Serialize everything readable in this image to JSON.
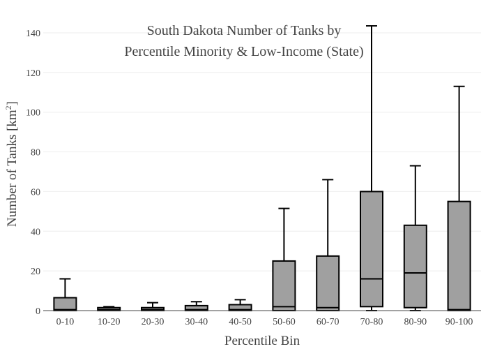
{
  "chart_data": {
    "type": "box",
    "title_line1": "South Dakota Number of Tanks by",
    "title_line2": "Percentile Minority & Low-Income (State)",
    "xlabel": "Percentile Bin",
    "ylabel_main": "Number of Tanks  [km",
    "ylabel_sup": "2",
    "ylabel_end": "]",
    "ylim": [
      0,
      145
    ],
    "yticks": [
      0,
      20,
      40,
      60,
      80,
      100,
      120,
      140
    ],
    "grid": true,
    "categories": [
      "0-10",
      "10-20",
      "20-30",
      "30-40",
      "40-50",
      "50-60",
      "60-70",
      "70-80",
      "80-90",
      "90-100"
    ],
    "boxes": [
      {
        "min": 0,
        "q1": 0,
        "median": 0.5,
        "q3": 6.5,
        "max": 16
      },
      {
        "min": 0,
        "q1": 0,
        "median": 0.5,
        "q3": 1.5,
        "max": 2
      },
      {
        "min": 0,
        "q1": 0,
        "median": 0.5,
        "q3": 1.5,
        "max": 4
      },
      {
        "min": 0,
        "q1": 0,
        "median": 0.5,
        "q3": 2.5,
        "max": 4.5
      },
      {
        "min": 0,
        "q1": 0,
        "median": 0.5,
        "q3": 3,
        "max": 5.5
      },
      {
        "min": 0,
        "q1": 0,
        "median": 2,
        "q3": 25,
        "max": 51.5
      },
      {
        "min": 0,
        "q1": 0,
        "median": 1.5,
        "q3": 27.5,
        "max": 66
      },
      {
        "min": 0,
        "q1": 2,
        "median": 16,
        "q3": 60,
        "max": 143.5
      },
      {
        "min": 0,
        "q1": 1.5,
        "median": 19,
        "q3": 43,
        "max": 73
      },
      {
        "min": 0,
        "q1": 0,
        "median": 0.5,
        "q3": 55,
        "max": 113
      }
    ],
    "box_color": "#a0a0a0",
    "line_color": "#000000"
  }
}
